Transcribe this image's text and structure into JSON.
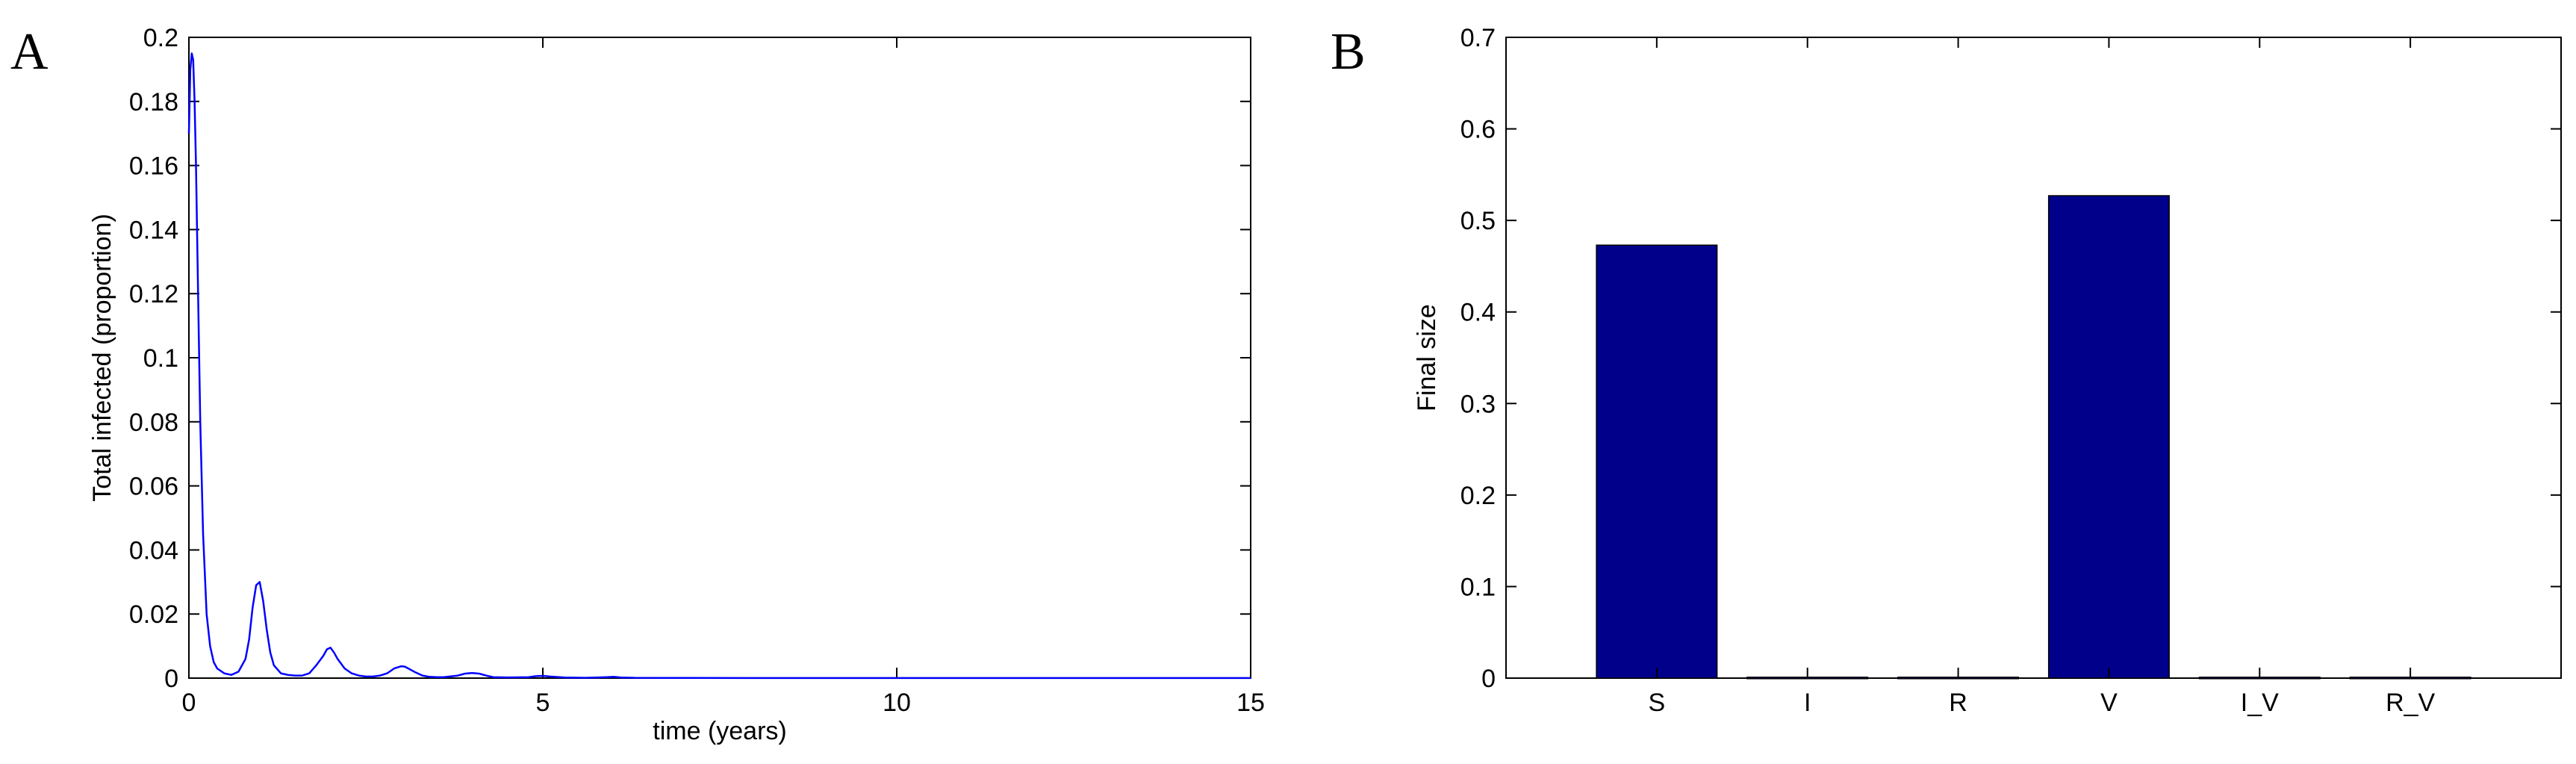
{
  "chart_data": [
    {
      "panel": "A",
      "type": "line",
      "title": "",
      "xlabel": "time (years)",
      "ylabel": "Total infected (proportion)",
      "xlim": [
        0,
        15
      ],
      "ylim": [
        0,
        0.2
      ],
      "xticks": [
        0,
        5,
        10,
        15
      ],
      "xtick_labels": [
        "0",
        "5",
        "10",
        "15"
      ],
      "yticks": [
        0,
        0.02,
        0.04,
        0.06,
        0.08,
        0.1,
        0.12,
        0.14,
        0.16,
        0.18,
        0.2
      ],
      "ytick_labels": [
        "0",
        "0.02",
        "0.04",
        "0.06",
        "0.08",
        "0.1",
        "0.12",
        "0.14",
        "0.16",
        "0.18",
        "0.2"
      ],
      "grid": false,
      "color": "#0000ff",
      "series": [
        {
          "x": [
            0,
            0.02,
            0.04,
            0.06,
            0.08,
            0.1,
            0.13,
            0.16,
            0.2,
            0.25,
            0.3,
            0.35,
            0.4,
            0.5,
            0.6,
            0.7,
            0.8,
            0.85,
            0.9,
            0.95,
            1.0,
            1.05,
            1.1,
            1.15,
            1.2,
            1.3,
            1.4,
            1.5,
            1.6,
            1.7,
            1.8,
            1.9,
            1.95,
            2.0,
            2.05,
            2.1,
            2.2,
            2.3,
            2.4,
            2.5,
            2.6,
            2.7,
            2.8,
            2.9,
            3.0,
            3.05,
            3.1,
            3.2,
            3.3,
            3.4,
            3.5,
            3.6,
            3.8,
            3.9,
            4.0,
            4.1,
            4.2,
            4.3,
            4.5,
            4.8,
            4.9,
            5.0,
            5.1,
            5.3,
            5.6,
            5.9,
            6.0,
            6.1,
            6.3,
            7.0,
            8.0,
            10.0,
            12.0,
            15.0
          ],
          "y": [
            0.17,
            0.19,
            0.195,
            0.193,
            0.18,
            0.16,
            0.12,
            0.08,
            0.045,
            0.02,
            0.01,
            0.005,
            0.003,
            0.0015,
            0.001,
            0.002,
            0.006,
            0.012,
            0.022,
            0.029,
            0.03,
            0.024,
            0.015,
            0.008,
            0.004,
            0.0015,
            0.001,
            0.0008,
            0.0008,
            0.0015,
            0.004,
            0.007,
            0.009,
            0.0095,
            0.008,
            0.006,
            0.003,
            0.0015,
            0.0008,
            0.0005,
            0.0005,
            0.0008,
            0.0015,
            0.003,
            0.0037,
            0.0036,
            0.003,
            0.0018,
            0.0008,
            0.0004,
            0.0003,
            0.0003,
            0.0008,
            0.0014,
            0.0016,
            0.0014,
            0.0008,
            0.0003,
            0.0002,
            0.0003,
            0.0006,
            0.0007,
            0.0005,
            0.0002,
            0.0001,
            0.0003,
            0.0004,
            0.0002,
            0.0001,
            5e-05,
            3e-05,
            2e-05,
            2e-05,
            2e-05
          ]
        }
      ]
    },
    {
      "panel": "B",
      "type": "bar",
      "title": "",
      "xlabel": "",
      "ylabel": "Final size",
      "ylim": [
        0,
        0.7
      ],
      "yticks": [
        0,
        0.1,
        0.2,
        0.3,
        0.4,
        0.5,
        0.6,
        0.7
      ],
      "ytick_labels": [
        "0",
        "0.1",
        "0.2",
        "0.3",
        "0.4",
        "0.5",
        "0.6",
        "0.7"
      ],
      "grid": false,
      "color": "#00008b",
      "categories": [
        "S",
        "I",
        "R",
        "V",
        "I_V",
        "R_V"
      ],
      "values": [
        0.473,
        0.001,
        0.001,
        0.527,
        0.001,
        0.001
      ]
    }
  ]
}
